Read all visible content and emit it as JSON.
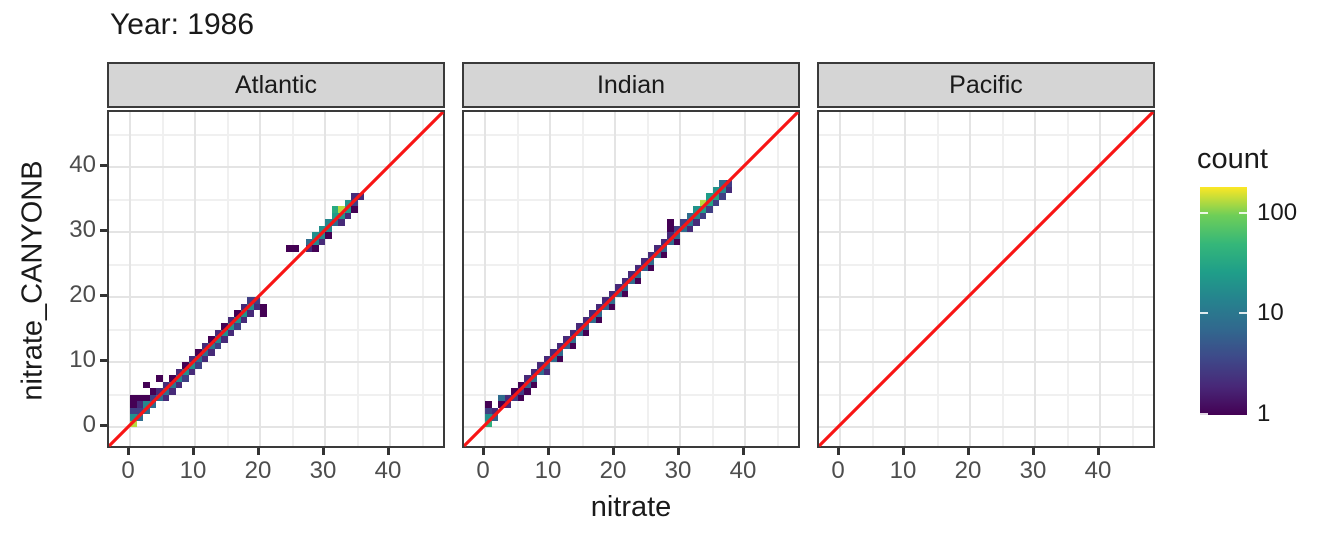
{
  "title": "Year: 1986",
  "axes": {
    "x_label": "nitrate",
    "y_label": "nitrate_CANYONB",
    "x_ticks": [
      "0",
      "10",
      "20",
      "30",
      "40"
    ],
    "y_ticks": [
      "0",
      "10",
      "20",
      "30",
      "40"
    ],
    "major_breaks": [
      0,
      10,
      20,
      30,
      40
    ],
    "minor_breaks": [
      5,
      15,
      25,
      35,
      45
    ],
    "x_range": [
      -3.2,
      48.8
    ],
    "y_range": [
      -3.5,
      48.5
    ]
  },
  "legend": {
    "title": "count",
    "tick_labels": [
      "100",
      "10",
      "1"
    ],
    "tick_values": [
      100,
      10,
      1
    ],
    "scale": "log10",
    "max_count": 180,
    "position": "right"
  },
  "colors": {
    "identity_line": "#F81515",
    "strip_fill": "#D5D5D5",
    "panel_border": "#3A3A3A",
    "grid_major": "#E4E4E4",
    "grid_minor": "#F0F0F0",
    "tick_label": "#4D4D4D",
    "text": "#1A1A1A",
    "viridis": [
      "#440154",
      "#482878",
      "#3E4989",
      "#31688E",
      "#26828E",
      "#1F9E89",
      "#35B779",
      "#6ECE58",
      "#FDE725"
    ]
  },
  "chart_data": {
    "type": "heatmap",
    "subtype": "bin2d",
    "title": "Year: 1986",
    "xlabel": "nitrate",
    "ylabel": "nitrate_CANYONB",
    "xlim": [
      -3.2,
      48.8
    ],
    "ylim": [
      -3.5,
      48.5
    ],
    "bin_size": 1,
    "grid": true,
    "identity_line": true,
    "legend_title": "count",
    "facets": [
      {
        "name": "Atlantic",
        "bins": [
          [
            0,
            0,
            130
          ],
          [
            0,
            1,
            18
          ],
          [
            1,
            1,
            8
          ],
          [
            0,
            2,
            3
          ],
          [
            1,
            2,
            3
          ],
          [
            2,
            2,
            8
          ],
          [
            2,
            3,
            15
          ],
          [
            1,
            3,
            2
          ],
          [
            0,
            3,
            1
          ],
          [
            0,
            4,
            1
          ],
          [
            1,
            4,
            1
          ],
          [
            3,
            3,
            8
          ],
          [
            3,
            4,
            3
          ],
          [
            2,
            4,
            1
          ],
          [
            4,
            4,
            8
          ],
          [
            4,
            5,
            2
          ],
          [
            3,
            5,
            1
          ],
          [
            2,
            6,
            1
          ],
          [
            4,
            7,
            1
          ],
          [
            5,
            5,
            8
          ],
          [
            5,
            4,
            2
          ],
          [
            5,
            6,
            2
          ],
          [
            6,
            6,
            10
          ],
          [
            6,
            5,
            2
          ],
          [
            6,
            7,
            1
          ],
          [
            7,
            7,
            15
          ],
          [
            7,
            6,
            2
          ],
          [
            7,
            8,
            2
          ],
          [
            8,
            8,
            18
          ],
          [
            8,
            7,
            3
          ],
          [
            8,
            9,
            1
          ],
          [
            9,
            9,
            18
          ],
          [
            9,
            8,
            2
          ],
          [
            9,
            10,
            2
          ],
          [
            10,
            10,
            8
          ],
          [
            10,
            9,
            3
          ],
          [
            10,
            11,
            1
          ],
          [
            11,
            11,
            8
          ],
          [
            11,
            10,
            2
          ],
          [
            11,
            12,
            2
          ],
          [
            12,
            12,
            10
          ],
          [
            12,
            11,
            2
          ],
          [
            12,
            13,
            1
          ],
          [
            13,
            13,
            15
          ],
          [
            13,
            12,
            3
          ],
          [
            13,
            14,
            2
          ],
          [
            14,
            14,
            18
          ],
          [
            14,
            13,
            2
          ],
          [
            14,
            15,
            1
          ],
          [
            15,
            15,
            20
          ],
          [
            15,
            14,
            2
          ],
          [
            15,
            16,
            2
          ],
          [
            16,
            16,
            18
          ],
          [
            16,
            15,
            3
          ],
          [
            16,
            17,
            1
          ],
          [
            17,
            17,
            20
          ],
          [
            17,
            16,
            2
          ],
          [
            17,
            18,
            2
          ],
          [
            18,
            18,
            18
          ],
          [
            18,
            17,
            2
          ],
          [
            18,
            19,
            3
          ],
          [
            19,
            19,
            3
          ],
          [
            19,
            18,
            2
          ],
          [
            20,
            18,
            1
          ],
          [
            20,
            17,
            1
          ],
          [
            24,
            27,
            1
          ],
          [
            25,
            27,
            1
          ],
          [
            27,
            27,
            2
          ],
          [
            27,
            28,
            8
          ],
          [
            28,
            28,
            15
          ],
          [
            28,
            29,
            18
          ],
          [
            28,
            27,
            1
          ],
          [
            29,
            29,
            15
          ],
          [
            29,
            30,
            18
          ],
          [
            29,
            28,
            2
          ],
          [
            30,
            30,
            15
          ],
          [
            30,
            31,
            15
          ],
          [
            30,
            29,
            1
          ],
          [
            31,
            31,
            8
          ],
          [
            31,
            32,
            25
          ],
          [
            31,
            33,
            35
          ],
          [
            32,
            32,
            20
          ],
          [
            32,
            33,
            130
          ],
          [
            32,
            31,
            2
          ],
          [
            33,
            33,
            25
          ],
          [
            33,
            34,
            20
          ],
          [
            33,
            32,
            2
          ],
          [
            34,
            34,
            3
          ],
          [
            34,
            35,
            2
          ],
          [
            34,
            33,
            1
          ],
          [
            35,
            35,
            2
          ]
        ]
      },
      {
        "name": "Indian",
        "bins": [
          [
            0,
            0,
            40
          ],
          [
            0,
            1,
            18
          ],
          [
            0,
            2,
            3
          ],
          [
            0,
            3,
            1
          ],
          [
            1,
            1,
            6
          ],
          [
            1,
            2,
            2
          ],
          [
            2,
            3,
            1
          ],
          [
            2,
            4,
            8
          ],
          [
            3,
            4,
            2
          ],
          [
            3,
            3,
            2
          ],
          [
            4,
            4,
            3
          ],
          [
            4,
            5,
            1
          ],
          [
            5,
            5,
            3
          ],
          [
            5,
            4,
            1
          ],
          [
            5,
            6,
            1
          ],
          [
            6,
            6,
            6
          ],
          [
            6,
            5,
            1
          ],
          [
            6,
            7,
            2
          ],
          [
            7,
            7,
            8
          ],
          [
            7,
            6,
            1
          ],
          [
            7,
            8,
            2
          ],
          [
            8,
            8,
            8
          ],
          [
            8,
            9,
            2
          ],
          [
            9,
            9,
            6
          ],
          [
            9,
            8,
            2
          ],
          [
            9,
            10,
            2
          ],
          [
            10,
            10,
            8
          ],
          [
            10,
            11,
            2
          ],
          [
            11,
            11,
            8
          ],
          [
            11,
            10,
            1
          ],
          [
            11,
            12,
            2
          ],
          [
            12,
            12,
            6
          ],
          [
            12,
            13,
            2
          ],
          [
            13,
            13,
            8
          ],
          [
            13,
            12,
            1
          ],
          [
            13,
            14,
            2
          ],
          [
            14,
            14,
            8
          ],
          [
            14,
            15,
            2
          ],
          [
            15,
            15,
            6
          ],
          [
            15,
            14,
            1
          ],
          [
            15,
            16,
            2
          ],
          [
            16,
            16,
            8
          ],
          [
            16,
            17,
            2
          ],
          [
            17,
            17,
            8
          ],
          [
            17,
            16,
            1
          ],
          [
            17,
            18,
            2
          ],
          [
            18,
            18,
            6
          ],
          [
            18,
            19,
            2
          ],
          [
            19,
            19,
            8
          ],
          [
            19,
            18,
            1
          ],
          [
            19,
            20,
            2
          ],
          [
            20,
            20,
            8
          ],
          [
            20,
            21,
            2
          ],
          [
            21,
            21,
            6
          ],
          [
            21,
            20,
            1
          ],
          [
            21,
            22,
            2
          ],
          [
            22,
            22,
            8
          ],
          [
            22,
            23,
            2
          ],
          [
            23,
            23,
            8
          ],
          [
            23,
            22,
            1
          ],
          [
            23,
            24,
            2
          ],
          [
            24,
            24,
            6
          ],
          [
            24,
            25,
            2
          ],
          [
            25,
            25,
            8
          ],
          [
            25,
            24,
            1
          ],
          [
            25,
            26,
            2
          ],
          [
            26,
            26,
            8
          ],
          [
            26,
            27,
            2
          ],
          [
            27,
            27,
            6
          ],
          [
            27,
            26,
            1
          ],
          [
            27,
            28,
            2
          ],
          [
            28,
            28,
            8
          ],
          [
            28,
            29,
            2
          ],
          [
            28,
            30,
            1
          ],
          [
            28,
            31,
            1
          ],
          [
            29,
            29,
            8
          ],
          [
            29,
            28,
            1
          ],
          [
            29,
            30,
            3
          ],
          [
            30,
            30,
            8
          ],
          [
            30,
            31,
            3
          ],
          [
            31,
            31,
            10
          ],
          [
            31,
            30,
            2
          ],
          [
            31,
            32,
            8
          ],
          [
            32,
            32,
            15
          ],
          [
            32,
            33,
            20
          ],
          [
            32,
            31,
            2
          ],
          [
            33,
            33,
            25
          ],
          [
            33,
            34,
            130
          ],
          [
            33,
            32,
            3
          ],
          [
            34,
            34,
            30
          ],
          [
            34,
            35,
            25
          ],
          [
            34,
            33,
            3
          ],
          [
            35,
            35,
            30
          ],
          [
            35,
            36,
            20
          ],
          [
            35,
            34,
            3
          ],
          [
            36,
            36,
            15
          ],
          [
            36,
            35,
            3
          ],
          [
            36,
            37,
            8
          ],
          [
            37,
            37,
            3
          ],
          [
            37,
            36,
            2
          ]
        ]
      },
      {
        "name": "Pacific",
        "bins": []
      }
    ]
  }
}
